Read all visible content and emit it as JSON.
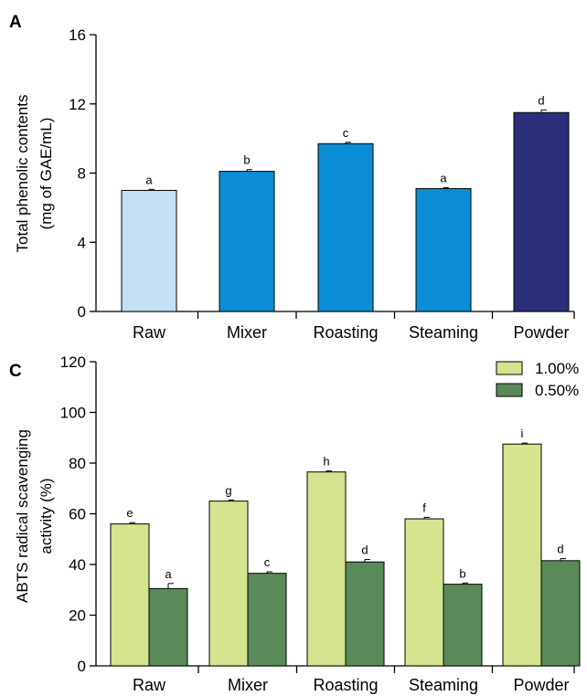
{
  "chart_data": [
    {
      "panel": "A",
      "type": "bar",
      "categories": [
        "Raw",
        "Mixer",
        "Roasting",
        "Steaming",
        "Powder"
      ],
      "values": [
        7.0,
        8.1,
        9.7,
        7.1,
        11.5
      ],
      "errors": [
        0.06,
        0.1,
        0.08,
        0.06,
        0.15
      ],
      "labels": [
        "a",
        "b",
        "c",
        "a",
        "d"
      ],
      "colors": [
        "#c3e0f5",
        "#0b8ed6",
        "#0b8ed6",
        "#0b8ed6",
        "#2b2f7a"
      ],
      "ylabel": [
        "Total phenolic contents",
        "(mg of GAE/mL)"
      ],
      "ylim": [
        0,
        16
      ],
      "yticks": [
        0,
        4,
        8,
        12,
        16
      ],
      "grid": false
    },
    {
      "panel": "C",
      "type": "bar",
      "categories": [
        "Raw",
        "Mixer",
        "Roasting",
        "Steaming",
        "Powder"
      ],
      "series": [
        {
          "name": "1.00%",
          "color": "#d4e48f",
          "values": [
            56,
            65,
            76.5,
            58,
            87.5
          ],
          "errors": [
            0.5,
            0.4,
            0.4,
            0.6,
            0.4
          ],
          "labels": [
            "e",
            "g",
            "h",
            "f",
            "i"
          ]
        },
        {
          "name": "0.50%",
          "color": "#5a8a5a",
          "values": [
            30.5,
            36.5,
            41,
            32.2,
            41.5
          ],
          "errors": [
            2.0,
            0.6,
            1.0,
            0.5,
            0.8
          ],
          "labels": [
            "a",
            "c",
            "d",
            "b",
            "d"
          ]
        }
      ],
      "ylabel": [
        "ABTS radical scavenging",
        "activity (%)"
      ],
      "ylim": [
        0,
        120
      ],
      "yticks": [
        0,
        20,
        40,
        60,
        80,
        100,
        120
      ],
      "legend_position": "top-right",
      "grid": false
    }
  ]
}
